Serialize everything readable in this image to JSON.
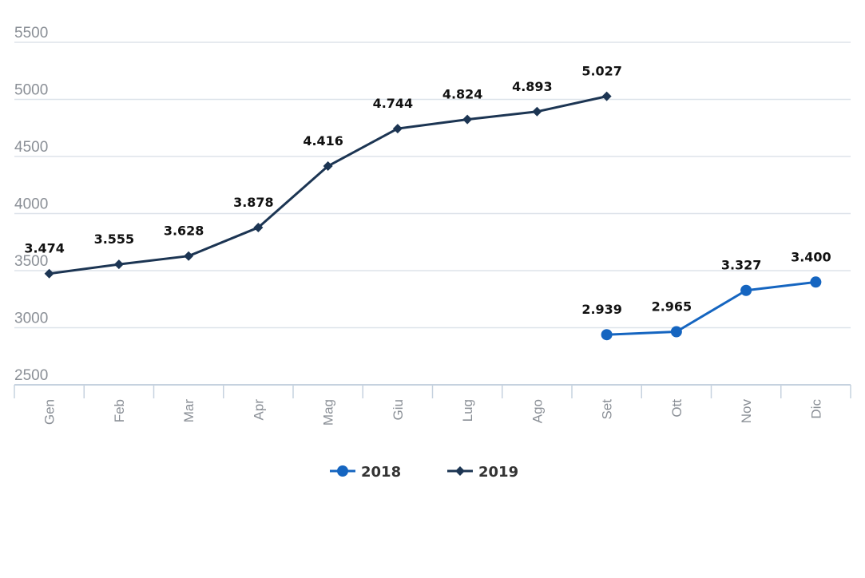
{
  "chart_data": {
    "type": "line",
    "categories": [
      "Gen",
      "Feb",
      "Mar",
      "Apr",
      "Mag",
      "Giu",
      "Lug",
      "Ago",
      "Set",
      "Ott",
      "Nov",
      "Dic"
    ],
    "ylim": [
      2500,
      5500
    ],
    "yticks": [
      2500,
      3000,
      3500,
      4000,
      4500,
      5000,
      5500
    ],
    "grid": true,
    "legend_position": "bottom",
    "series": [
      {
        "name": "2018",
        "color": "#1565c0",
        "marker": "circle",
        "values": [
          null,
          null,
          null,
          null,
          null,
          null,
          null,
          null,
          2939,
          2965,
          3327,
          3400
        ],
        "labels": [
          null,
          null,
          null,
          null,
          null,
          null,
          null,
          null,
          "2.939",
          "2.965",
          "3.327",
          "3.400"
        ]
      },
      {
        "name": "2019",
        "color": "#1c3553",
        "marker": "diamond",
        "values": [
          3474,
          3555,
          3628,
          3878,
          4416,
          4744,
          4824,
          4893,
          5027,
          null,
          null,
          null
        ],
        "labels": [
          "3.474",
          "3.555",
          "3.628",
          "3.878",
          "4.416",
          "4.744",
          "4.824",
          "4.893",
          "5.027",
          null,
          null,
          null
        ]
      }
    ]
  }
}
